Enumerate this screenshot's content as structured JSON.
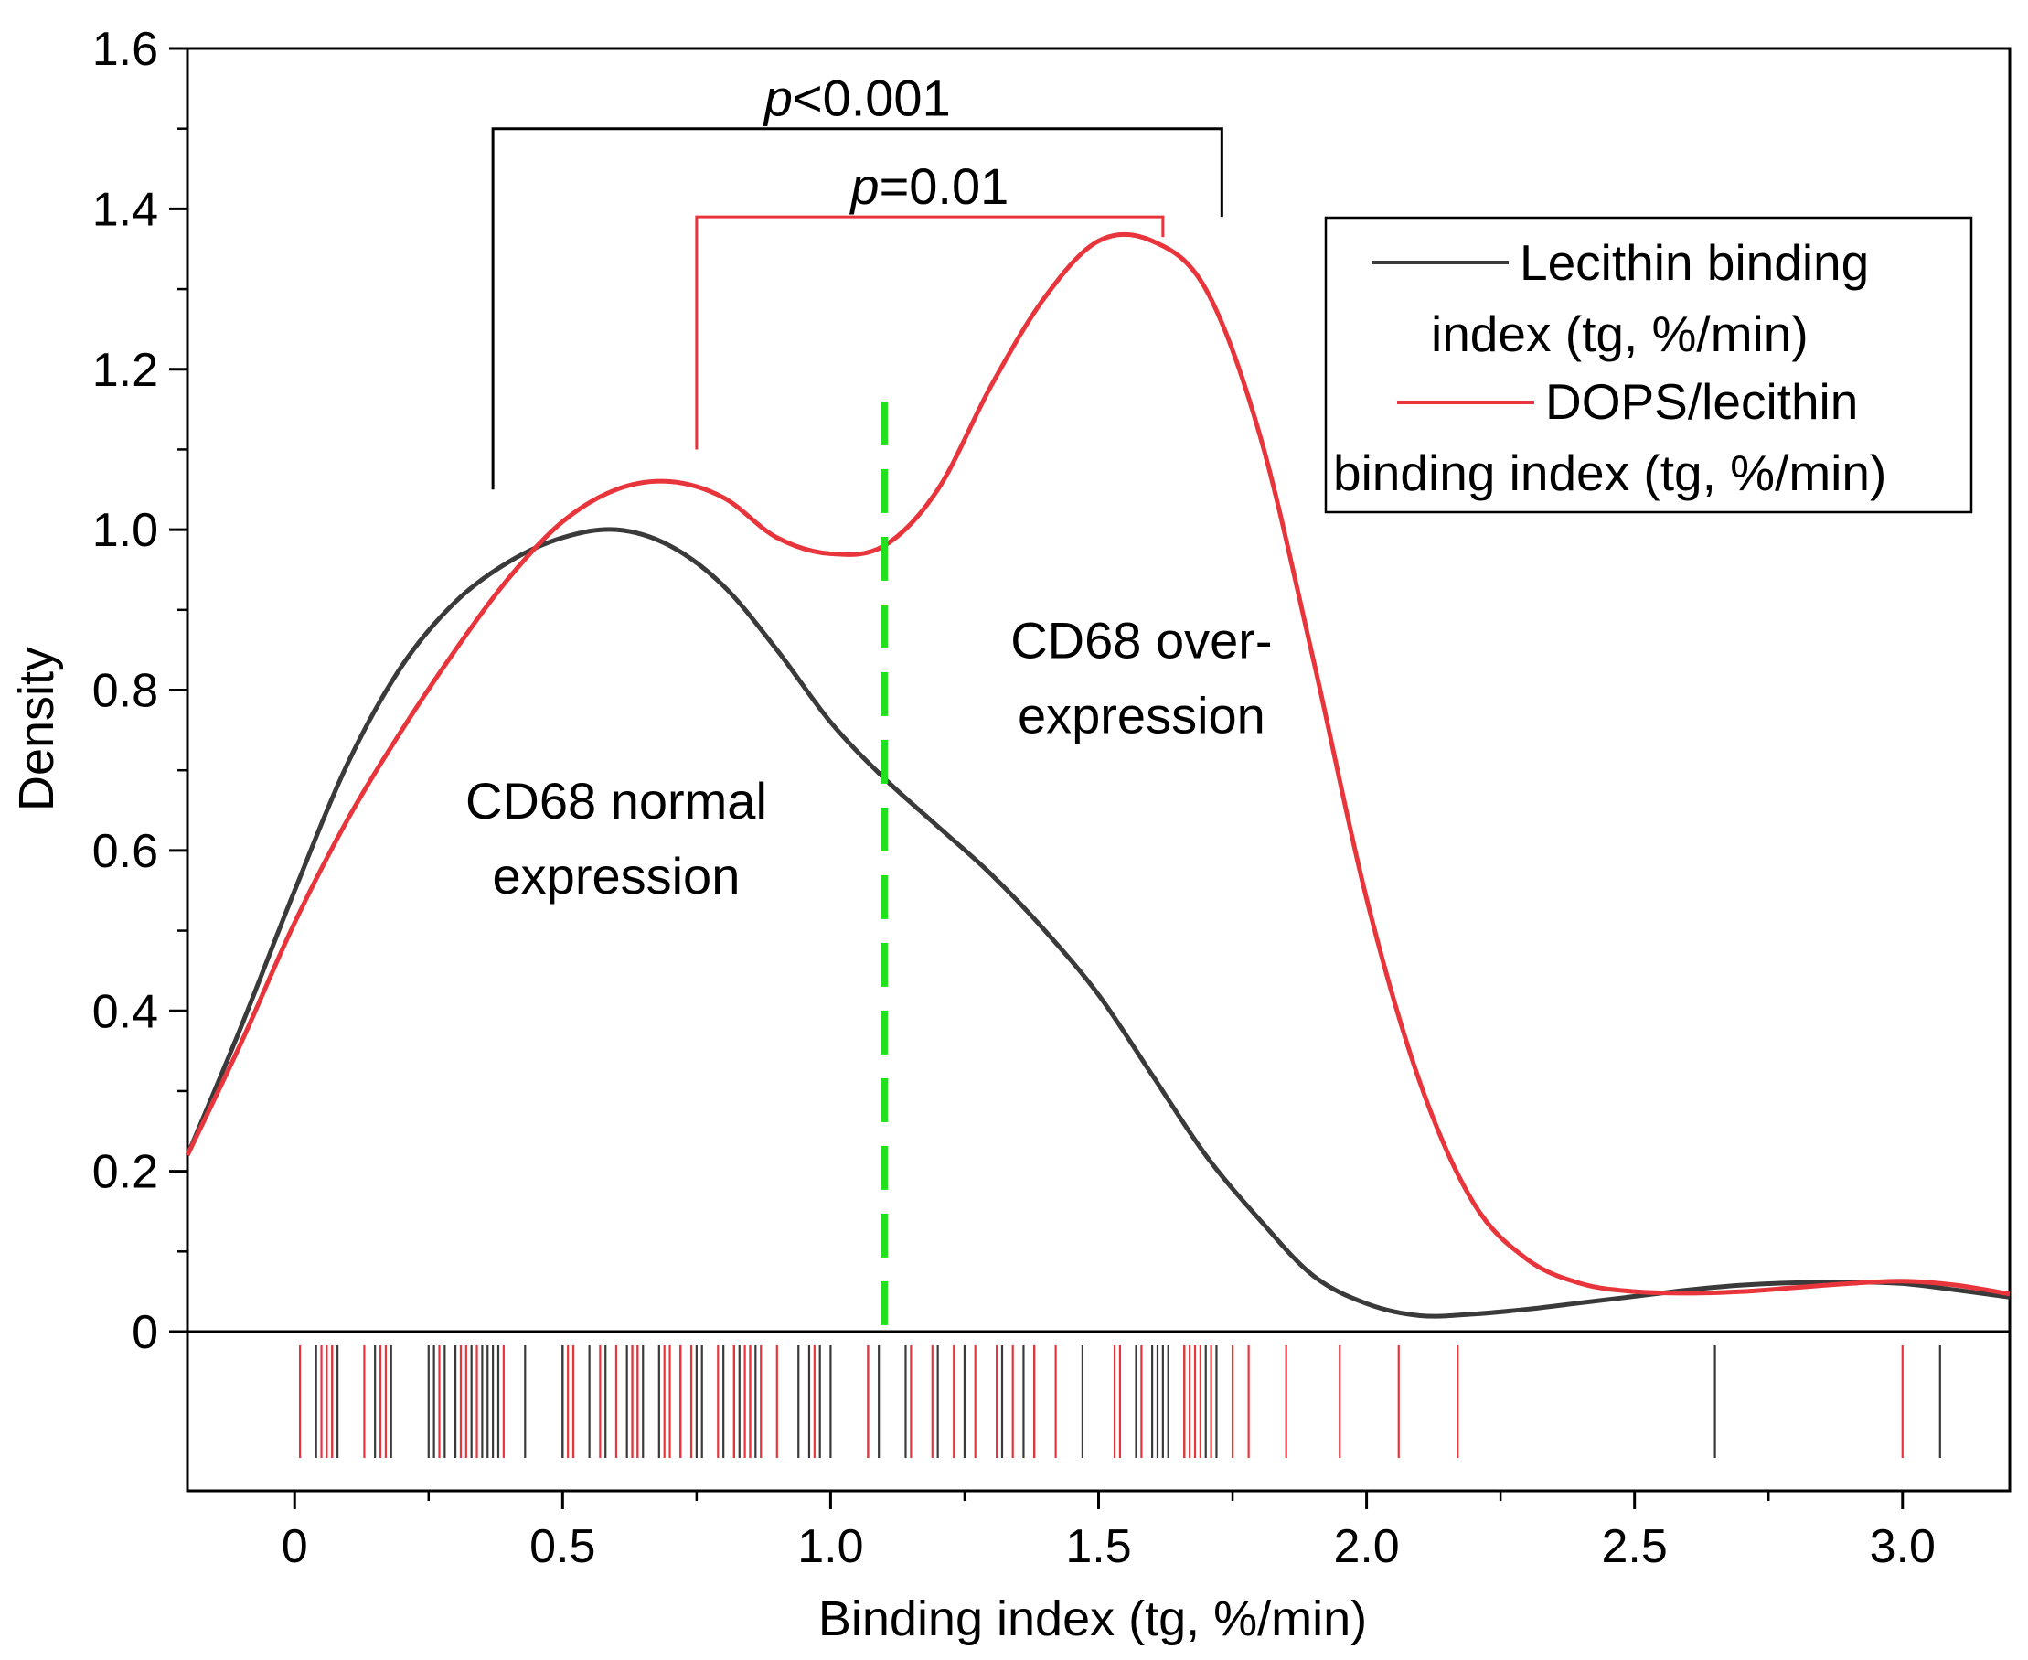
{
  "chart_data": {
    "type": "line",
    "subtype": "density with rug plot",
    "xlabel": "Binding index (tg, %/min)",
    "ylabel": "Density",
    "xlim": [
      -0.2,
      3.2
    ],
    "ylim": [
      0,
      1.6
    ],
    "x_ticks": [
      0,
      0.5,
      1.0,
      1.5,
      2.0,
      2.5,
      3.0
    ],
    "x_tick_labels": [
      "0",
      "0.5",
      "1.0",
      "1.5",
      "2.0",
      "2.5",
      "3.0"
    ],
    "y_ticks": [
      0,
      0.2,
      0.4,
      0.6,
      0.8,
      1.0,
      1.2,
      1.4,
      1.6
    ],
    "y_tick_labels": [
      "0",
      "0.2",
      "0.4",
      "0.6",
      "0.8",
      "1.0",
      "1.2",
      "1.4",
      "1.6"
    ],
    "grid": false,
    "legend_position": "top-right",
    "series": [
      {
        "name": "Lecithin binding index (tg, %/min)",
        "legend_lines": [
          "Lecithin binding",
          "index (tg, %/min)"
        ],
        "color": "#3a3a3a",
        "x": [
          -0.2,
          -0.1,
          0.0,
          0.1,
          0.2,
          0.3,
          0.4,
          0.5,
          0.6,
          0.7,
          0.8,
          0.9,
          1.0,
          1.1,
          1.2,
          1.3,
          1.4,
          1.5,
          1.6,
          1.7,
          1.8,
          1.9,
          2.0,
          2.1,
          2.2,
          2.3,
          2.4,
          2.5,
          2.6,
          2.7,
          2.8,
          2.9,
          3.0,
          3.1,
          3.2
        ],
        "y": [
          0.22,
          0.38,
          0.55,
          0.71,
          0.83,
          0.91,
          0.96,
          0.99,
          1.0,
          0.98,
          0.93,
          0.85,
          0.76,
          0.69,
          0.63,
          0.57,
          0.5,
          0.42,
          0.32,
          0.22,
          0.14,
          0.07,
          0.035,
          0.02,
          0.022,
          0.028,
          0.036,
          0.044,
          0.052,
          0.058,
          0.061,
          0.062,
          0.06,
          0.052,
          0.043
        ],
        "rug": [
          0.04,
          0.07,
          0.08,
          0.15,
          0.18,
          0.25,
          0.26,
          0.28,
          0.3,
          0.33,
          0.35,
          0.36,
          0.37,
          0.38,
          0.43,
          0.5,
          0.5,
          0.52,
          0.55,
          0.58,
          0.62,
          0.63,
          0.64,
          0.65,
          0.68,
          0.72,
          0.75,
          0.76,
          0.8,
          0.82,
          0.83,
          0.85,
          0.86,
          0.94,
          0.96,
          0.98,
          1.0,
          1.07,
          1.09,
          1.14,
          1.2,
          1.25,
          1.32,
          1.36,
          1.38,
          1.47,
          1.57,
          1.6,
          1.61,
          1.62,
          1.63,
          1.66,
          1.7,
          1.72,
          2.65,
          3.07
        ]
      },
      {
        "name": "DOPS/lecithin binding index (tg, %/min)",
        "legend_lines": [
          "DOPS/lecithin",
          "binding index (tg, %/min)"
        ],
        "color": "#e8353b",
        "x": [
          -0.2,
          -0.1,
          0.0,
          0.1,
          0.2,
          0.3,
          0.4,
          0.5,
          0.6,
          0.7,
          0.8,
          0.9,
          1.0,
          1.1,
          1.2,
          1.3,
          1.4,
          1.5,
          1.6,
          1.7,
          1.8,
          1.9,
          2.0,
          2.1,
          2.2,
          2.3,
          2.4,
          2.5,
          2.6,
          2.7,
          2.8,
          2.9,
          3.0,
          3.1,
          3.2
        ],
        "y": [
          0.22,
          0.36,
          0.51,
          0.64,
          0.75,
          0.85,
          0.94,
          1.01,
          1.05,
          1.06,
          1.04,
          0.99,
          0.97,
          0.98,
          1.05,
          1.18,
          1.29,
          1.36,
          1.36,
          1.3,
          1.12,
          0.84,
          0.54,
          0.31,
          0.16,
          0.09,
          0.06,
          0.05,
          0.048,
          0.05,
          0.055,
          0.06,
          0.063,
          0.058,
          0.047
        ],
        "rug": [
          0.01,
          0.05,
          0.06,
          0.07,
          0.13,
          0.16,
          0.17,
          0.27,
          0.31,
          0.32,
          0.34,
          0.39,
          0.51,
          0.52,
          0.57,
          0.6,
          0.63,
          0.64,
          0.69,
          0.7,
          0.72,
          0.74,
          0.79,
          0.82,
          0.84,
          0.85,
          0.87,
          0.9,
          0.97,
          1.07,
          1.15,
          1.19,
          1.23,
          1.27,
          1.31,
          1.34,
          1.38,
          1.42,
          1.53,
          1.54,
          1.58,
          1.66,
          1.67,
          1.68,
          1.69,
          1.71,
          1.75,
          1.78,
          1.85,
          1.95,
          2.06,
          2.17,
          3.0
        ]
      }
    ],
    "threshold": {
      "x": 1.1,
      "y_range": [
        0,
        1.16
      ],
      "color": "#22e01e",
      "style": "dashed"
    },
    "annotations": [
      {
        "lines": [
          "CD68 normal",
          "expression"
        ],
        "x": 0.6,
        "y": 0.64
      },
      {
        "lines": [
          "CD68 over-",
          "expression"
        ],
        "x": 1.58,
        "y": 0.84
      }
    ],
    "brackets": [
      {
        "label_italic": "p",
        "label_rest": "<0.001",
        "x_left": 0.37,
        "x_right": 1.73,
        "y_top": 1.5,
        "y_left_end": 1.05,
        "y_right_end": 1.39,
        "color": "#000000"
      },
      {
        "label_italic": "p",
        "label_rest": "=0.01",
        "x_left": 0.75,
        "x_right": 1.62,
        "y_top": 1.39,
        "y_left_end": 1.1,
        "y_right_end": 1.365,
        "color": "#e8353b"
      }
    ]
  }
}
